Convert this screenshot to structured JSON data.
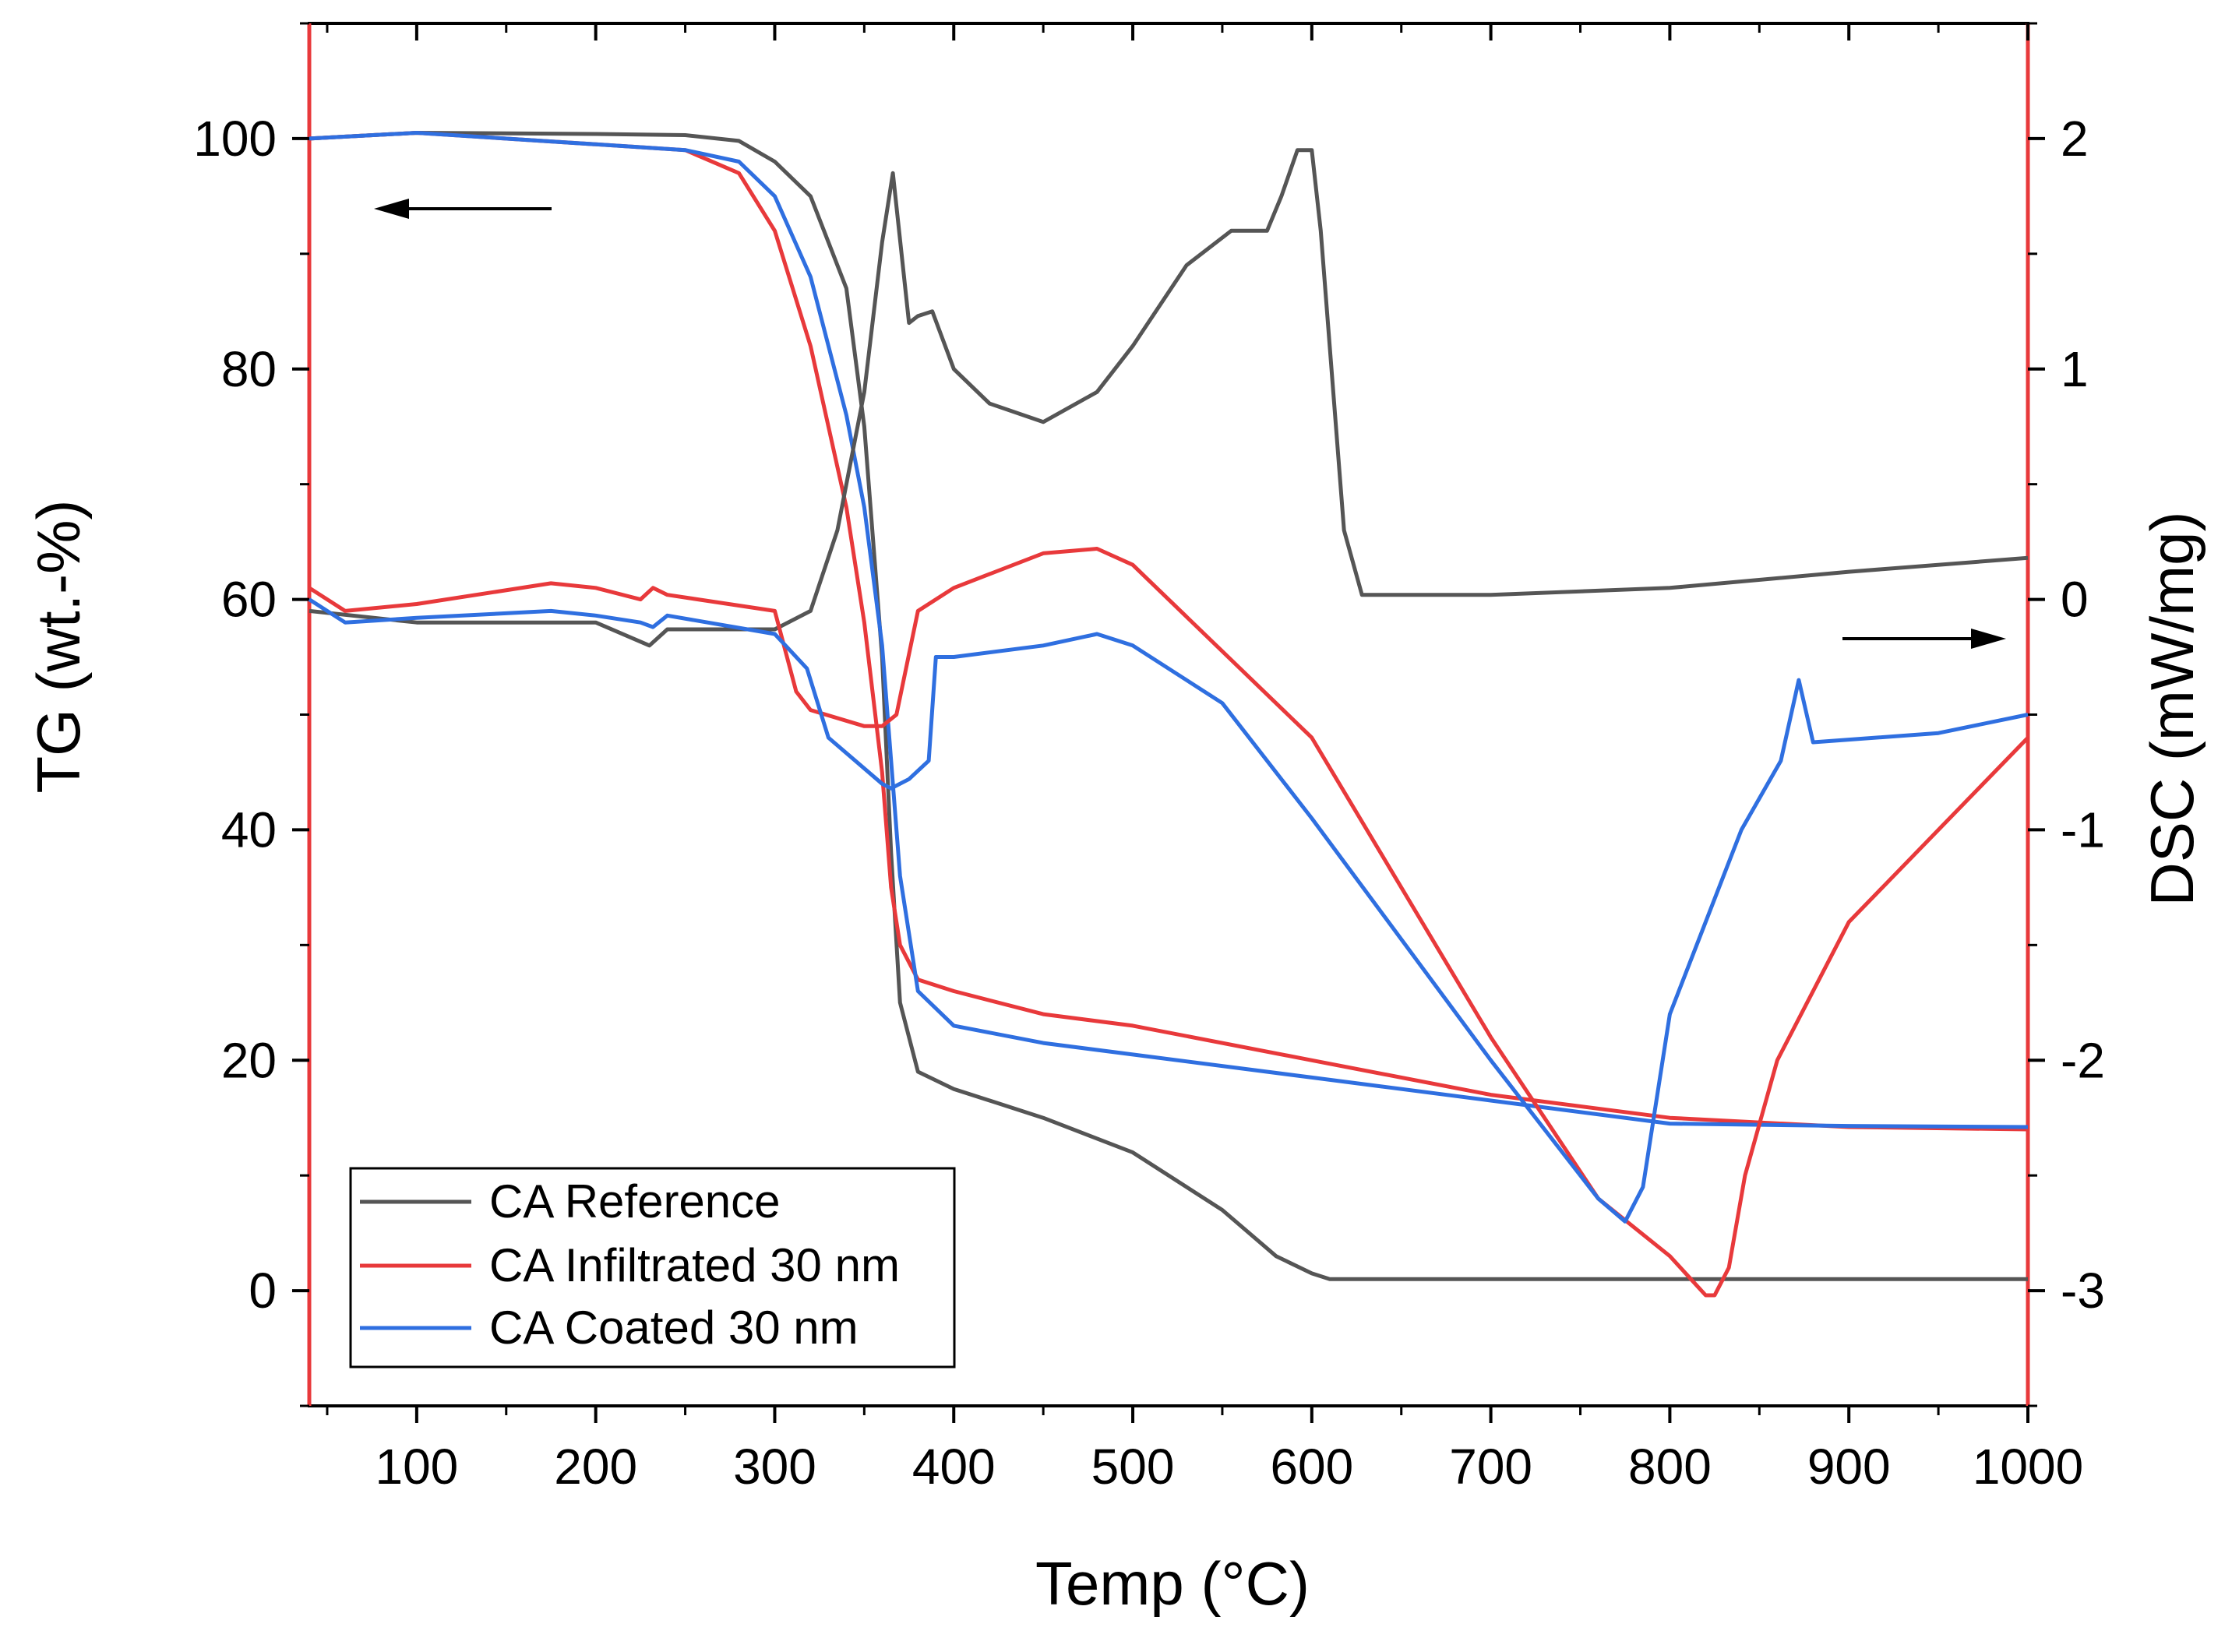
{
  "chart_data": {
    "type": "line",
    "xlabel": "Temp (°C)",
    "ylabel_left": "TG (wt.-%)",
    "ylabel_right": "DSC (mW/mg)",
    "xlim": [
      40,
      1000
    ],
    "ylim_left": [
      -10,
      110
    ],
    "ylim_right": [
      -3.5,
      2.5
    ],
    "x_ticks": [
      100,
      200,
      300,
      400,
      500,
      600,
      700,
      800,
      900,
      1000
    ],
    "y_left_ticks": [
      0,
      20,
      40,
      60,
      80,
      100
    ],
    "y_right_ticks": [
      -3,
      -2,
      -1,
      0,
      1,
      2
    ],
    "grid": false,
    "legend_position": "bottom-left",
    "annotations": [
      {
        "type": "arrow",
        "direction": "left",
        "axis": "left",
        "meaning": "TG curves read on left axis"
      },
      {
        "type": "arrow",
        "direction": "right",
        "axis": "right",
        "meaning": "DSC curves read on right axis"
      }
    ],
    "series": [
      {
        "name": "CA Reference",
        "color": "#555555",
        "axis": "left",
        "quantity": "TG",
        "x": [
          40,
          100,
          200,
          250,
          280,
          300,
          320,
          340,
          350,
          360,
          365,
          370,
          380,
          400,
          450,
          500,
          550,
          580,
          600,
          610,
          700,
          800,
          900,
          1000
        ],
        "y": [
          100,
          100.5,
          100.4,
          100.3,
          99.8,
          98,
          95,
          87,
          75,
          55,
          38,
          25,
          19,
          17.5,
          15,
          12,
          7,
          3,
          1.5,
          1,
          1,
          1,
          1,
          1
        ]
      },
      {
        "name": "CA Infiltrated 30 nm",
        "color": "#e8393b",
        "axis": "left",
        "quantity": "TG",
        "x": [
          40,
          100,
          200,
          250,
          280,
          300,
          320,
          340,
          350,
          360,
          365,
          370,
          380,
          400,
          450,
          500,
          600,
          700,
          800,
          900,
          1000
        ],
        "y": [
          100,
          100.5,
          99.5,
          99,
          97,
          92,
          82,
          68,
          58,
          45,
          35,
          30,
          27,
          26,
          24,
          23,
          20,
          17,
          15,
          14.2,
          14
        ]
      },
      {
        "name": "CA Coated 30 nm",
        "color": "#2f6fe0",
        "axis": "left",
        "quantity": "TG",
        "x": [
          40,
          100,
          200,
          250,
          280,
          300,
          320,
          340,
          350,
          360,
          365,
          370,
          380,
          400,
          450,
          500,
          600,
          700,
          800,
          900,
          1000
        ],
        "y": [
          100,
          100.5,
          99.5,
          99,
          98,
          95,
          88,
          76,
          68,
          56,
          46,
          36,
          26,
          23,
          21.5,
          20.5,
          18.5,
          16.5,
          14.5,
          14.3,
          14.2
        ]
      },
      {
        "name": "CA Reference",
        "color": "#555555",
        "axis": "right",
        "quantity": "DSC",
        "x": [
          40,
          100,
          200,
          230,
          240,
          300,
          320,
          335,
          350,
          360,
          366,
          375,
          380,
          388,
          400,
          420,
          450,
          480,
          500,
          530,
          555,
          575,
          583,
          592,
          600,
          605,
          612,
          618,
          628,
          700,
          800,
          900,
          1000
        ],
        "y": [
          -0.05,
          -0.1,
          -0.1,
          -0.2,
          -0.13,
          -0.13,
          -0.05,
          0.3,
          0.9,
          1.55,
          1.85,
          1.2,
          1.23,
          1.25,
          1.0,
          0.85,
          0.77,
          0.9,
          1.1,
          1.45,
          1.6,
          1.6,
          1.75,
          1.95,
          1.95,
          1.6,
          0.9,
          0.3,
          0.02,
          0.02,
          0.05,
          0.12,
          0.18
        ]
      },
      {
        "name": "CA Infiltrated 30 nm",
        "color": "#e8393b",
        "axis": "right",
        "quantity": "DSC",
        "x": [
          40,
          60,
          100,
          175,
          200,
          225,
          232,
          240,
          300,
          312,
          320,
          350,
          360,
          368,
          380,
          400,
          450,
          480,
          500,
          600,
          700,
          760,
          800,
          820,
          825,
          833,
          842,
          860,
          900,
          1000
        ],
        "y": [
          0.05,
          -0.05,
          -0.02,
          0.07,
          0.05,
          0.0,
          0.05,
          0.02,
          -0.05,
          -0.4,
          -0.48,
          -0.55,
          -0.55,
          -0.5,
          -0.05,
          0.05,
          0.2,
          0.22,
          0.15,
          -0.6,
          -1.9,
          -2.6,
          -2.85,
          -3.02,
          -3.02,
          -2.9,
          -2.5,
          -2.0,
          -1.4,
          -0.6
        ]
      },
      {
        "name": "CA Coated 30 nm",
        "color": "#2f6fe0",
        "axis": "right",
        "quantity": "DSC",
        "x": [
          40,
          60,
          100,
          175,
          200,
          225,
          232,
          240,
          300,
          318,
          330,
          360,
          365,
          375,
          386,
          390,
          400,
          450,
          480,
          500,
          550,
          600,
          700,
          760,
          775,
          785,
          800,
          840,
          862,
          872,
          880,
          950,
          1000
        ],
        "y": [
          0.0,
          -0.1,
          -0.08,
          -0.05,
          -0.07,
          -0.1,
          -0.12,
          -0.07,
          -0.15,
          -0.3,
          -0.6,
          -0.8,
          -0.82,
          -0.78,
          -0.7,
          -0.25,
          -0.25,
          -0.2,
          -0.15,
          -0.2,
          -0.45,
          -0.95,
          -2.0,
          -2.6,
          -2.7,
          -2.55,
          -1.8,
          -1.0,
          -0.7,
          -0.35,
          -0.62,
          -0.58,
          -0.5
        ]
      }
    ],
    "legend": [
      {
        "name": "CA Reference",
        "color": "#555555"
      },
      {
        "name": "CA Infiltrated 30 nm",
        "color": "#e8393b"
      },
      {
        "name": "CA Coated 30 nm",
        "color": "#2f6fe0"
      }
    ]
  }
}
